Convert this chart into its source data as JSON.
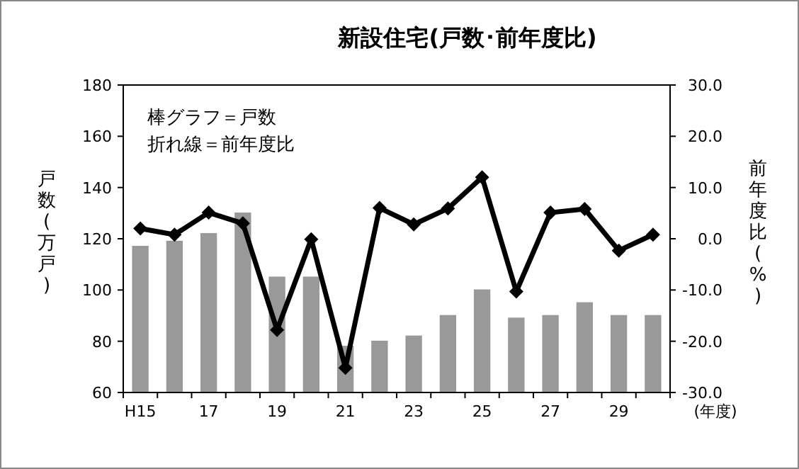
{
  "chart_data": {
    "type": "bar",
    "title": "新設住宅(戸数･前年度比)",
    "categories": [
      "H15",
      null,
      "17",
      null,
      "19",
      null,
      "21",
      null,
      "23",
      null,
      "25",
      null,
      "27",
      null,
      "29",
      null
    ],
    "series": [
      {
        "type": "bar",
        "color": "#999999",
        "values": [
          117,
          119,
          122,
          130,
          105,
          105,
          78,
          80,
          82,
          90,
          100,
          89,
          90,
          95,
          90,
          90
        ]
      },
      {
        "type": "line",
        "axis": "y2",
        "color": "#000000",
        "marker": "diamond",
        "line_style": "solid",
        "values": [
          2.0,
          0.8,
          5.1,
          3.0,
          -17.8,
          -0.1,
          -25.2,
          6.0,
          2.8,
          5.9,
          12.0,
          -10.3,
          5.1,
          5.8,
          -2.3,
          0.8
        ]
      }
    ],
    "xlabel": "(年度)",
    "ylabel": "戸数(万戸)",
    "y2label": "前年度比(%)",
    "ylim": [
      60,
      180
    ],
    "yticks": [
      60,
      80,
      100,
      120,
      140,
      160,
      180
    ],
    "y2lim": [
      -30,
      30
    ],
    "y2ticks": [
      {
        "value": -30,
        "label": "-30.0"
      },
      {
        "value": -20,
        "label": "-20.0"
      },
      {
        "value": -10,
        "label": "-10.0"
      },
      {
        "value": 0,
        "label": "0.0"
      },
      {
        "value": 10,
        "label": "10.0"
      },
      {
        "value": 20,
        "label": "20.0"
      },
      {
        "value": 30,
        "label": "30.0"
      }
    ],
    "annotations": [
      "棒グラフ＝戸数",
      "折れ線＝前年度比"
    ],
    "grid": false
  }
}
